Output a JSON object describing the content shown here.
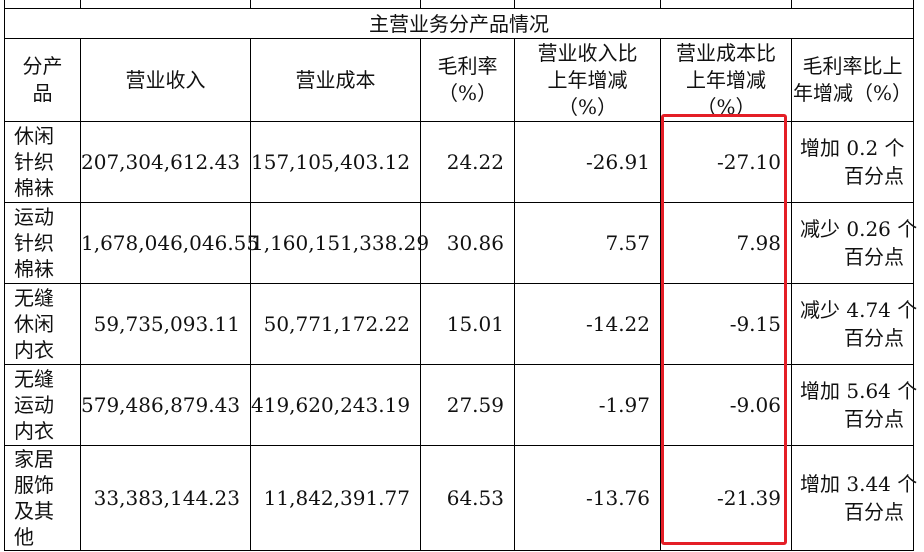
{
  "table": {
    "title": "主营业务分产品情况",
    "headers": [
      [
        "分产",
        "品"
      ],
      [
        "营业收入"
      ],
      [
        "营业成本"
      ],
      [
        "毛利率",
        "（%）"
      ],
      [
        "营业收入比",
        "上年增减",
        "（%）"
      ],
      [
        "营业成本比",
        "上年增减",
        "（%）"
      ],
      [
        "毛利率比上",
        "年增减（%）"
      ]
    ],
    "rows": [
      {
        "product": [
          "休闲",
          "针织",
          "棉袜"
        ],
        "revenue": "207,304,612.43",
        "cost": "157,105,403.12",
        "gross_margin": "24.22",
        "revenue_change": "-26.91",
        "cost_change": "-27.10",
        "margin_change": [
          "增加 0.2 个",
          "百分点"
        ]
      },
      {
        "product": [
          "运动",
          "针织",
          "棉袜"
        ],
        "revenue": "1,678,046,046.55",
        "cost": "1,160,151,338.29",
        "gross_margin": "30.86",
        "revenue_change": "7.57",
        "cost_change": "7.98",
        "margin_change": [
          "减少 0.26 个",
          "百分点"
        ]
      },
      {
        "product": [
          "无缝",
          "休闲",
          "内衣"
        ],
        "revenue": "59,735,093.11",
        "cost": "50,771,172.22",
        "gross_margin": "15.01",
        "revenue_change": "-14.22",
        "cost_change": "-9.15",
        "margin_change": [
          "减少 4.74 个",
          "百分点"
        ]
      },
      {
        "product": [
          "无缝",
          "运动",
          "内衣"
        ],
        "revenue": "579,486,879.43",
        "cost": "419,620,243.19",
        "gross_margin": "27.59",
        "revenue_change": "-1.97",
        "cost_change": "-9.06",
        "margin_change": [
          "增加 5.64 个",
          "百分点"
        ]
      },
      {
        "product": [
          "家居",
          "服饰",
          "及其",
          "他"
        ],
        "revenue": "33,383,144.23",
        "cost": "11,842,391.77",
        "gross_margin": "64.53",
        "revenue_change": "-13.76",
        "cost_change": "-21.39",
        "margin_change": [
          "增加 3.44 个",
          "百分点"
        ]
      }
    ]
  },
  "highlight": {
    "column": "营业成本比上年增减",
    "color": "#e41e26"
  }
}
